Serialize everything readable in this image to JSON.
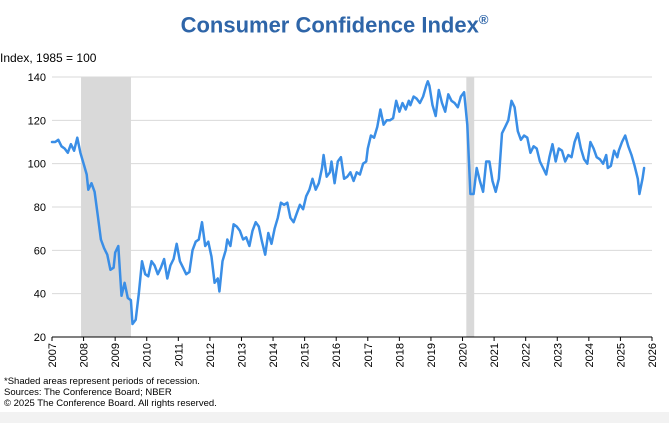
{
  "chart_data": {
    "type": "line",
    "title": "Consumer Confidence Index",
    "title_mark": "®",
    "ylabel": "Index, 1985 = 100",
    "xlabel": "",
    "ylim": [
      20,
      140
    ],
    "xlim": [
      2007,
      2026
    ],
    "y_ticks": [
      20,
      40,
      60,
      80,
      100,
      120,
      140
    ],
    "x_ticks": [
      2007,
      2008,
      2009,
      2010,
      2011,
      2012,
      2013,
      2014,
      2015,
      2016,
      2017,
      2018,
      2019,
      2020,
      2021,
      2022,
      2023,
      2024,
      2025,
      2026
    ],
    "grid": "horizontal",
    "line_color": "#3a8ee6",
    "shade_color": "#d9d9d9",
    "recessions": [
      [
        2007.92,
        2009.5
      ],
      [
        2020.12,
        2020.37
      ]
    ],
    "series": [
      {
        "points": [
          [
            2007.0,
            110
          ],
          [
            2007.1,
            110
          ],
          [
            2007.2,
            111
          ],
          [
            2007.3,
            108
          ],
          [
            2007.4,
            107
          ],
          [
            2007.5,
            105
          ],
          [
            2007.6,
            109
          ],
          [
            2007.7,
            106
          ],
          [
            2007.8,
            112
          ],
          [
            2007.9,
            105
          ],
          [
            2008.0,
            100
          ],
          [
            2008.1,
            95
          ],
          [
            2008.15,
            88
          ],
          [
            2008.25,
            91
          ],
          [
            2008.35,
            87
          ],
          [
            2008.45,
            76
          ],
          [
            2008.55,
            65
          ],
          [
            2008.65,
            61
          ],
          [
            2008.75,
            58
          ],
          [
            2008.85,
            51
          ],
          [
            2008.95,
            52
          ],
          [
            2009.0,
            59
          ],
          [
            2009.1,
            62
          ],
          [
            2009.2,
            39
          ],
          [
            2009.3,
            45
          ],
          [
            2009.4,
            38
          ],
          [
            2009.5,
            37
          ],
          [
            2009.55,
            26
          ],
          [
            2009.65,
            28
          ],
          [
            2009.75,
            40
          ],
          [
            2009.85,
            55
          ],
          [
            2009.95,
            49
          ],
          [
            2010.05,
            48
          ],
          [
            2010.15,
            55
          ],
          [
            2010.25,
            53
          ],
          [
            2010.35,
            49
          ],
          [
            2010.45,
            52
          ],
          [
            2010.55,
            56
          ],
          [
            2010.65,
            47
          ],
          [
            2010.75,
            53
          ],
          [
            2010.85,
            56
          ],
          [
            2010.95,
            63
          ],
          [
            2011.05,
            55
          ],
          [
            2011.15,
            52
          ],
          [
            2011.25,
            49
          ],
          [
            2011.35,
            50
          ],
          [
            2011.45,
            60
          ],
          [
            2011.55,
            64
          ],
          [
            2011.65,
            65
          ],
          [
            2011.75,
            73
          ],
          [
            2011.85,
            62
          ],
          [
            2011.95,
            64
          ],
          [
            2012.05,
            57
          ],
          [
            2012.15,
            45
          ],
          [
            2012.25,
            47
          ],
          [
            2012.3,
            41
          ],
          [
            2012.4,
            55
          ],
          [
            2012.5,
            60
          ],
          [
            2012.55,
            65
          ],
          [
            2012.65,
            62
          ],
          [
            2012.75,
            72
          ],
          [
            2012.85,
            71
          ],
          [
            2012.95,
            69
          ],
          [
            2013.05,
            65
          ],
          [
            2013.15,
            66
          ],
          [
            2013.25,
            62
          ],
          [
            2013.35,
            69
          ],
          [
            2013.45,
            73
          ],
          [
            2013.55,
            71
          ],
          [
            2013.65,
            64
          ],
          [
            2013.75,
            58
          ],
          [
            2013.85,
            68
          ],
          [
            2013.95,
            63
          ],
          [
            2014.05,
            70
          ],
          [
            2014.15,
            75
          ],
          [
            2014.25,
            82
          ],
          [
            2014.35,
            81
          ],
          [
            2014.45,
            82
          ],
          [
            2014.55,
            75
          ],
          [
            2014.65,
            73
          ],
          [
            2014.75,
            77
          ],
          [
            2014.85,
            81
          ],
          [
            2014.95,
            79
          ],
          [
            2015.05,
            85
          ],
          [
            2015.15,
            88
          ],
          [
            2015.25,
            93
          ],
          [
            2015.35,
            88
          ],
          [
            2015.45,
            91
          ],
          [
            2015.55,
            98
          ],
          [
            2015.6,
            104
          ],
          [
            2015.7,
            94
          ],
          [
            2015.8,
            96
          ],
          [
            2015.85,
            101
          ],
          [
            2015.95,
            91
          ],
          [
            2016.05,
            101
          ],
          [
            2016.15,
            103
          ],
          [
            2016.25,
            93
          ],
          [
            2016.35,
            94
          ],
          [
            2016.45,
            96
          ],
          [
            2016.55,
            92
          ],
          [
            2016.65,
            96
          ],
          [
            2016.75,
            95
          ],
          [
            2016.85,
            100
          ],
          [
            2016.95,
            101
          ],
          [
            2017.0,
            107
          ],
          [
            2017.1,
            113
          ],
          [
            2017.2,
            112
          ],
          [
            2017.3,
            117
          ],
          [
            2017.4,
            125
          ],
          [
            2017.5,
            118
          ],
          [
            2017.6,
            120
          ],
          [
            2017.7,
            120
          ],
          [
            2017.8,
            121
          ],
          [
            2017.9,
            129
          ],
          [
            2018.0,
            124
          ],
          [
            2018.1,
            128
          ],
          [
            2018.2,
            125
          ],
          [
            2018.3,
            129
          ],
          [
            2018.35,
            127
          ],
          [
            2018.45,
            131
          ],
          [
            2018.55,
            130
          ],
          [
            2018.65,
            128
          ],
          [
            2018.75,
            131
          ],
          [
            2018.85,
            136
          ],
          [
            2018.9,
            138
          ],
          [
            2018.95,
            136
          ],
          [
            2019.05,
            127
          ],
          [
            2019.15,
            122
          ],
          [
            2019.25,
            134
          ],
          [
            2019.35,
            128
          ],
          [
            2019.45,
            124
          ],
          [
            2019.55,
            132
          ],
          [
            2019.65,
            129
          ],
          [
            2019.75,
            128
          ],
          [
            2019.85,
            126
          ],
          [
            2019.95,
            131
          ],
          [
            2020.05,
            133
          ],
          [
            2020.15,
            118
          ],
          [
            2020.25,
            86
          ],
          [
            2020.35,
            86
          ],
          [
            2020.45,
            98
          ],
          [
            2020.55,
            92
          ],
          [
            2020.65,
            87
          ],
          [
            2020.75,
            101
          ],
          [
            2020.85,
            101
          ],
          [
            2020.95,
            92
          ],
          [
            2021.05,
            87
          ],
          [
            2021.15,
            93
          ],
          [
            2021.25,
            114
          ],
          [
            2021.35,
            117
          ],
          [
            2021.45,
            120
          ],
          [
            2021.55,
            129
          ],
          [
            2021.65,
            126
          ],
          [
            2021.75,
            115
          ],
          [
            2021.85,
            111
          ],
          [
            2021.95,
            113
          ],
          [
            2022.05,
            112
          ],
          [
            2022.15,
            105
          ],
          [
            2022.25,
            108
          ],
          [
            2022.35,
            107
          ],
          [
            2022.45,
            101
          ],
          [
            2022.55,
            98
          ],
          [
            2022.65,
            95
          ],
          [
            2022.75,
            103
          ],
          [
            2022.85,
            109
          ],
          [
            2022.95,
            101
          ],
          [
            2023.05,
            107
          ],
          [
            2023.15,
            106
          ],
          [
            2023.25,
            101
          ],
          [
            2023.35,
            104
          ],
          [
            2023.45,
            103
          ],
          [
            2023.55,
            110
          ],
          [
            2023.65,
            114
          ],
          [
            2023.75,
            107
          ],
          [
            2023.85,
            102
          ],
          [
            2023.95,
            100
          ],
          [
            2024.05,
            110
          ],
          [
            2024.15,
            107
          ],
          [
            2024.25,
            103
          ],
          [
            2024.35,
            102
          ],
          [
            2024.45,
            100
          ],
          [
            2024.55,
            104
          ],
          [
            2024.6,
            98
          ],
          [
            2024.7,
            99
          ],
          [
            2024.8,
            106
          ],
          [
            2024.9,
            103
          ],
          [
            2024.95,
            106
          ],
          [
            2025.05,
            110
          ],
          [
            2025.15,
            113
          ],
          [
            2025.25,
            108
          ],
          [
            2025.35,
            104
          ],
          [
            2025.45,
            99
          ],
          [
            2025.55,
            93
          ],
          [
            2025.6,
            86
          ],
          [
            2025.7,
            93
          ],
          [
            2025.75,
            98
          ]
        ]
      }
    ]
  },
  "footer": {
    "note": "*Shaded areas represent periods of recession.",
    "sources": "Sources: The Conference Board;  NBER",
    "copyright": "© 2025 The Conference Board. All rights reserved."
  }
}
